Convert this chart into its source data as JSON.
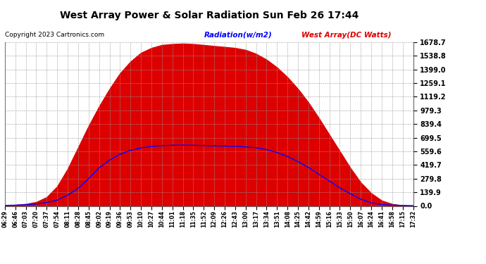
{
  "title": "West Array Power & Solar Radiation Sun Feb 26 17:44",
  "copyright": "Copyright 2023 Cartronics.com",
  "legend_radiation": "Radiation(w/m2)",
  "legend_west": "West Array(DC Watts)",
  "radiation_color": "#dd0000",
  "west_color": "blue",
  "background_color": "#ffffff",
  "yticks": [
    0.0,
    139.9,
    279.8,
    419.7,
    559.6,
    699.5,
    839.4,
    979.3,
    1119.2,
    1259.1,
    1399.0,
    1538.8,
    1678.7
  ],
  "ymax": 1678.7,
  "time_labels": [
    "06:29",
    "06:46",
    "07:03",
    "07:20",
    "07:37",
    "07:54",
    "08:11",
    "08:28",
    "08:45",
    "09:02",
    "09:19",
    "09:36",
    "09:53",
    "10:10",
    "10:27",
    "10:44",
    "11:01",
    "11:18",
    "11:35",
    "11:52",
    "12:09",
    "12:26",
    "12:43",
    "13:00",
    "13:17",
    "13:34",
    "13:51",
    "14:08",
    "14:25",
    "14:42",
    "14:59",
    "15:16",
    "15:33",
    "15:50",
    "16:07",
    "16:24",
    "16:41",
    "16:58",
    "17:15",
    "17:32"
  ],
  "radiation_values": [
    0,
    10,
    20,
    40,
    90,
    200,
    380,
    600,
    820,
    1020,
    1200,
    1360,
    1480,
    1570,
    1620,
    1650,
    1660,
    1665,
    1660,
    1650,
    1640,
    1630,
    1620,
    1600,
    1560,
    1500,
    1420,
    1320,
    1200,
    1060,
    900,
    730,
    560,
    390,
    240,
    130,
    55,
    20,
    5,
    0
  ],
  "west_values": [
    5,
    8,
    12,
    20,
    35,
    60,
    110,
    180,
    280,
    390,
    470,
    530,
    570,
    595,
    610,
    618,
    622,
    624,
    622,
    619,
    616,
    614,
    611,
    606,
    596,
    578,
    548,
    508,
    455,
    395,
    325,
    255,
    185,
    125,
    70,
    32,
    14,
    8,
    5,
    3
  ]
}
